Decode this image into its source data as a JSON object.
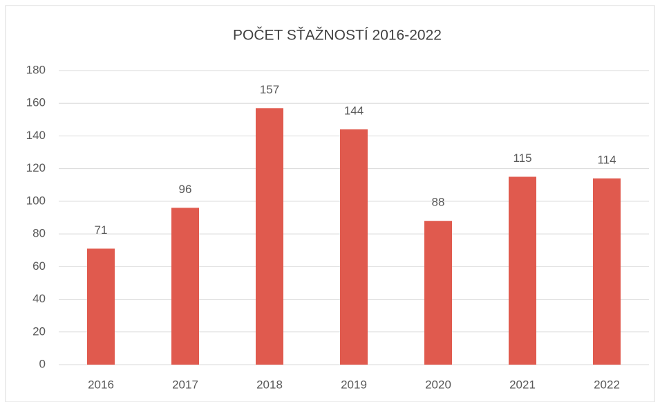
{
  "chart_data": {
    "type": "bar",
    "title": "POČET SŤAŽNOSTÍ 2016-2022",
    "categories": [
      "2016",
      "2017",
      "2018",
      "2019",
      "2020",
      "2021",
      "2022"
    ],
    "values": [
      71,
      96,
      157,
      144,
      88,
      115,
      114
    ],
    "color": "#e05a4e",
    "ylim": [
      0,
      180
    ],
    "yticks": [
      0,
      20,
      40,
      60,
      80,
      100,
      120,
      140,
      160,
      180
    ],
    "grid": true
  }
}
